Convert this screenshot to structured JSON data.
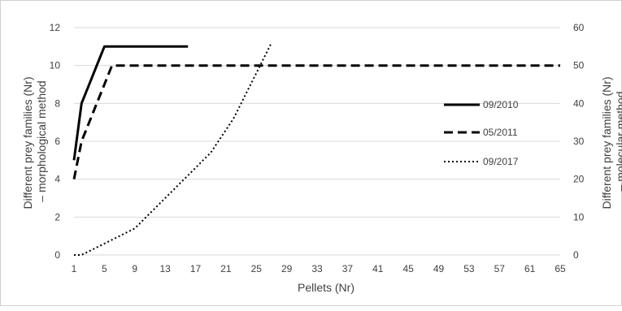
{
  "chart_data": {
    "type": "line",
    "title": "",
    "xlabel": "Pellets (Nr)",
    "ylabel_left": [
      "Different prey families (Nr)",
      "– morphological method"
    ],
    "ylabel_right": [
      "Different prey families (Nr)",
      "– molecular method"
    ],
    "x_ticks": [
      1,
      5,
      9,
      13,
      17,
      21,
      25,
      29,
      33,
      37,
      41,
      45,
      49,
      53,
      57,
      61,
      65
    ],
    "xlim": [
      1,
      65
    ],
    "ylim_left": [
      0,
      12
    ],
    "y_ticks_left": [
      0,
      2,
      4,
      6,
      8,
      10,
      12
    ],
    "ylim_right": [
      0,
      60
    ],
    "y_ticks_right": [
      0,
      10,
      20,
      30,
      40,
      50,
      60
    ],
    "grid": true,
    "legend_position": "right",
    "series": [
      {
        "name": "09/2010",
        "axis": "left",
        "style": "solid",
        "color": "#000000",
        "x": [
          1,
          2,
          3,
          4,
          5,
          6,
          7,
          8,
          9,
          10,
          11,
          12,
          13,
          14,
          15,
          16
        ],
        "y": [
          5,
          8,
          9,
          10,
          11,
          11,
          11,
          11,
          11,
          11,
          11,
          11,
          11,
          11,
          11,
          11
        ]
      },
      {
        "name": "05/2011",
        "axis": "left",
        "style": "dashed",
        "color": "#000000",
        "x": [
          1,
          2,
          3,
          4,
          5,
          6,
          7,
          10,
          15,
          20,
          25,
          30,
          35,
          40,
          45,
          50,
          55,
          60,
          65
        ],
        "y": [
          4,
          6,
          7,
          8,
          9,
          10,
          10,
          10,
          10,
          10,
          10,
          10,
          10,
          10,
          10,
          10,
          10,
          10,
          10
        ]
      },
      {
        "name": "09/2017",
        "axis": "right",
        "style": "dotted",
        "color": "#000000",
        "x": [
          1,
          2,
          3,
          4,
          5,
          6,
          7,
          8,
          9,
          10,
          11,
          12,
          13,
          14,
          15,
          16,
          17,
          18,
          19,
          20,
          21,
          22,
          23,
          24,
          25,
          26,
          27
        ],
        "y": [
          0,
          0,
          1,
          2,
          3,
          4,
          5,
          6,
          7,
          9,
          11,
          13,
          15,
          17,
          19,
          21,
          23,
          25,
          27,
          30,
          33,
          36,
          40,
          44,
          48,
          52,
          56
        ]
      }
    ]
  }
}
